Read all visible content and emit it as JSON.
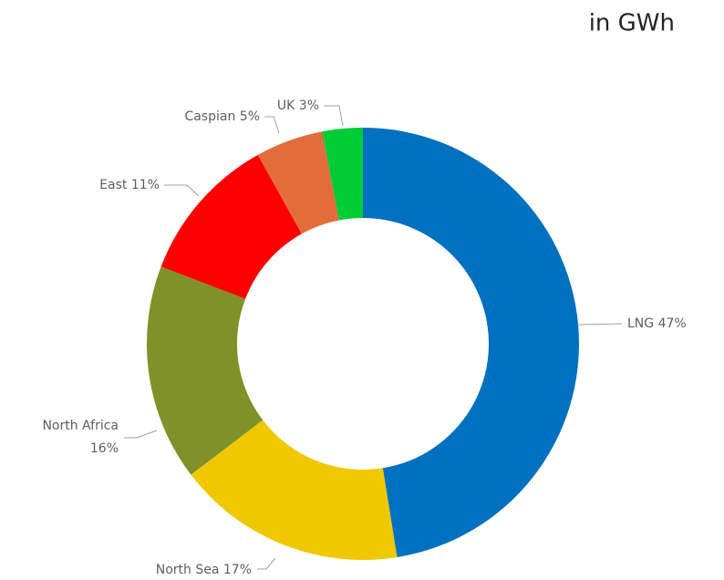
{
  "chart_data": {
    "type": "donut",
    "title": "in GWh",
    "categories": [
      "LNG",
      "North Sea",
      "North Africa",
      "East",
      "Caspian",
      "UK"
    ],
    "values": [
      47,
      17,
      16,
      11,
      5,
      3
    ],
    "value_labels": [
      "47%",
      "17%",
      "16%",
      "11%",
      "5%",
      "3%"
    ],
    "colors": [
      "#0070c0",
      "#f0c800",
      "#7f9128",
      "#ff0000",
      "#e46c3a",
      "#00cc33"
    ]
  }
}
